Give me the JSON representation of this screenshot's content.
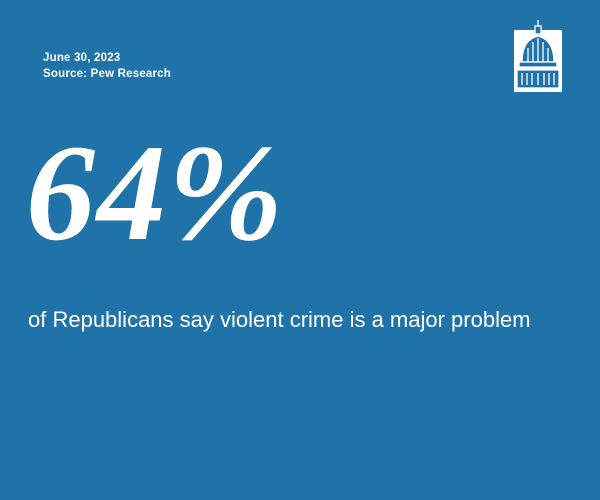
{
  "header": {
    "date": "June 30, 2023",
    "source": "Source: Pew Research"
  },
  "stat": {
    "figure": "64%",
    "description": "of Republicans say violent crime is a major problem"
  }
}
